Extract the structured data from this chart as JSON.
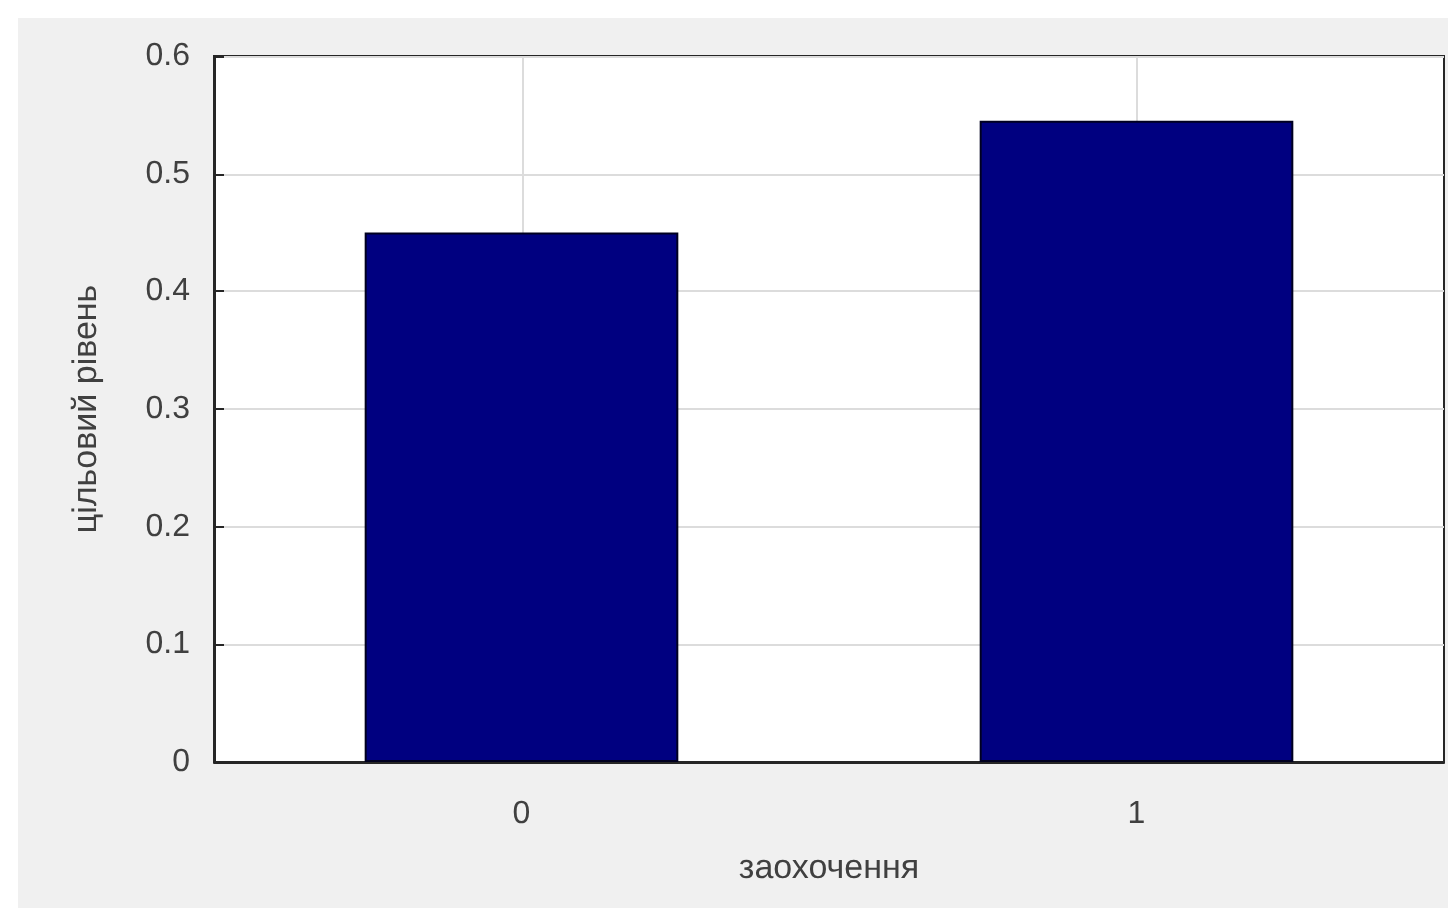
{
  "chart_data": {
    "type": "bar",
    "xlabel": "заохочення",
    "ylabel": "цільовий рівень",
    "x": [
      0,
      1
    ],
    "values": [
      0.45,
      0.545
    ],
    "color": "#000080",
    "xlim": [
      -0.5,
      1.5
    ],
    "xticks": [
      0,
      1
    ],
    "ylim": [
      0,
      0.6
    ],
    "yticks": [
      0,
      0.1,
      0.2,
      0.3,
      0.4,
      0.5,
      0.6
    ],
    "grid": true
  }
}
